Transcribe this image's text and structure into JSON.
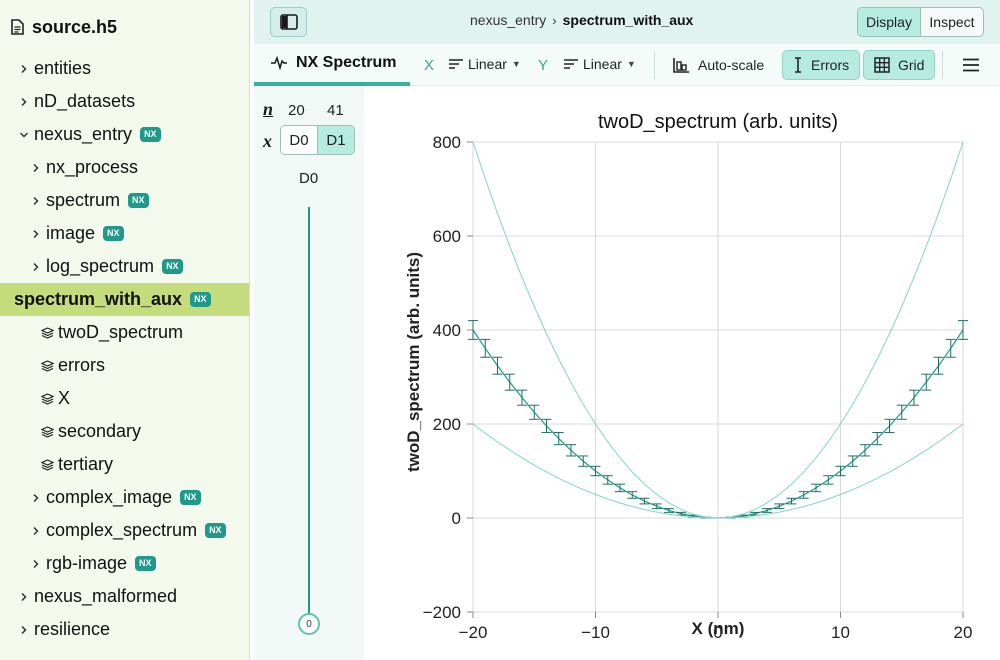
{
  "sidebar": {
    "title": "source.h5",
    "items": [
      {
        "label": "entities",
        "level": 0,
        "kind": "group",
        "expanded": false,
        "nx": false
      },
      {
        "label": "nD_datasets",
        "level": 0,
        "kind": "group",
        "expanded": false,
        "nx": false
      },
      {
        "label": "nexus_entry",
        "level": 0,
        "kind": "group",
        "expanded": true,
        "nx": true
      },
      {
        "label": "nx_process",
        "level": 1,
        "kind": "group",
        "expanded": false,
        "nx": false
      },
      {
        "label": "spectrum",
        "level": 1,
        "kind": "group",
        "expanded": false,
        "nx": true
      },
      {
        "label": "image",
        "level": 1,
        "kind": "group",
        "expanded": false,
        "nx": true
      },
      {
        "label": "log_spectrum",
        "level": 1,
        "kind": "group",
        "expanded": false,
        "nx": true
      },
      {
        "label": "spectrum_with_aux",
        "level": 0,
        "kind": "selected",
        "expanded": true,
        "nx": true
      },
      {
        "label": "twoD_spectrum",
        "level": 1,
        "kind": "dataset",
        "nx": false
      },
      {
        "label": "errors",
        "level": 1,
        "kind": "dataset",
        "nx": false
      },
      {
        "label": "X",
        "level": 1,
        "kind": "dataset",
        "nx": false
      },
      {
        "label": "secondary",
        "level": 1,
        "kind": "dataset",
        "nx": false
      },
      {
        "label": "tertiary",
        "level": 1,
        "kind": "dataset",
        "nx": false
      },
      {
        "label": "complex_image",
        "level": 1,
        "kind": "group",
        "expanded": false,
        "nx": true
      },
      {
        "label": "complex_spectrum",
        "level": 1,
        "kind": "group",
        "expanded": false,
        "nx": true
      },
      {
        "label": "rgb-image",
        "level": 1,
        "kind": "group",
        "expanded": false,
        "nx": true
      },
      {
        "label": "nexus_malformed",
        "level": 0,
        "kind": "group",
        "expanded": false,
        "nx": false
      },
      {
        "label": "resilience",
        "level": 0,
        "kind": "group",
        "expanded": false,
        "nx": false
      }
    ],
    "nx_badge": "NX"
  },
  "header": {
    "breadcrumb_parent": "nexus_entry",
    "breadcrumb_current": "spectrum_with_aux",
    "mode_display": "Display",
    "mode_inspect": "Inspect"
  },
  "toolbar": {
    "vis_tab": "NX Spectrum",
    "x_label": "X",
    "x_scale": "Linear",
    "y_label": "Y",
    "y_scale": "Linear",
    "autoscale": "Auto-scale",
    "errors": "Errors",
    "grid": "Grid"
  },
  "dims": {
    "n_label": "n",
    "x_label": "x",
    "size_d0": "20",
    "size_d1": "41",
    "btn_d0": "D0",
    "btn_d1": "D1",
    "slider_label": "D0",
    "slider_value": "0",
    "slider_fraction": 0
  },
  "colors": {
    "accent": "#1f9a8a",
    "sidebar_bg": "#f4f9ee",
    "selected_bg": "#c4dc7c",
    "header_bg": "#e0f3ee",
    "toggle_bg": "#b6ebe0"
  },
  "chart_data": {
    "type": "line",
    "title": "twoD_spectrum (arb. units)",
    "xlabel": "X (nm)",
    "ylabel": "twoD_spectrum (arb. units)",
    "xlim": [
      -20,
      20
    ],
    "ylim": [
      -200,
      800
    ],
    "xticks": [
      -20,
      -10,
      0,
      10,
      20
    ],
    "yticks": [
      -200,
      0,
      200,
      400,
      600,
      800
    ],
    "xtick_labels": [
      "−20",
      "−10",
      "0",
      "10",
      "20"
    ],
    "ytick_labels": [
      "−200",
      "0",
      "200",
      "400",
      "600",
      "800"
    ],
    "grid": true,
    "x": [
      -20,
      -19,
      -18,
      -17,
      -16,
      -15,
      -14,
      -13,
      -12,
      -11,
      -10,
      -9,
      -8,
      -7,
      -6,
      -5,
      -4,
      -3,
      -2,
      -1,
      0,
      1,
      2,
      3,
      4,
      5,
      6,
      7,
      8,
      9,
      10,
      11,
      12,
      13,
      14,
      15,
      16,
      17,
      18,
      19,
      20
    ],
    "series": [
      {
        "values": [
          400,
          361,
          324,
          289,
          256,
          225,
          196,
          169,
          144,
          121,
          100,
          81,
          64,
          49,
          36,
          25,
          16,
          9,
          4,
          1,
          0,
          1,
          4,
          9,
          16,
          25,
          36,
          49,
          64,
          81,
          100,
          121,
          144,
          169,
          196,
          225,
          256,
          289,
          324,
          361,
          400
        ],
        "errors": [
          20,
          19,
          18,
          17,
          16,
          15,
          14,
          13,
          12,
          11,
          10,
          9,
          8,
          7,
          6,
          5,
          4,
          3,
          2,
          1,
          0,
          1,
          2,
          3,
          4,
          5,
          6,
          7,
          8,
          9,
          10,
          11,
          12,
          13,
          14,
          15,
          16,
          17,
          18,
          19,
          20
        ],
        "style": "errorbars"
      },
      {
        "values": [
          800,
          722,
          648,
          578,
          512,
          450,
          392,
          338,
          288,
          242,
          200,
          162,
          128,
          98,
          72,
          50,
          32,
          18,
          8,
          2,
          0,
          2,
          8,
          18,
          32,
          50,
          72,
          98,
          128,
          162,
          200,
          242,
          288,
          338,
          392,
          450,
          512,
          578,
          648,
          722,
          800
        ],
        "style": "line"
      },
      {
        "values": [
          200,
          180.5,
          162,
          144.5,
          128,
          112.5,
          98,
          84.5,
          72,
          60.5,
          50,
          40.5,
          32,
          24.5,
          18,
          12.5,
          8,
          4.5,
          2,
          0.5,
          0,
          0.5,
          2,
          4.5,
          8,
          12.5,
          18,
          24.5,
          32,
          40.5,
          50,
          60.5,
          72,
          84.5,
          98,
          112.5,
          128,
          144.5,
          162,
          180.5,
          200
        ],
        "style": "line"
      }
    ]
  }
}
